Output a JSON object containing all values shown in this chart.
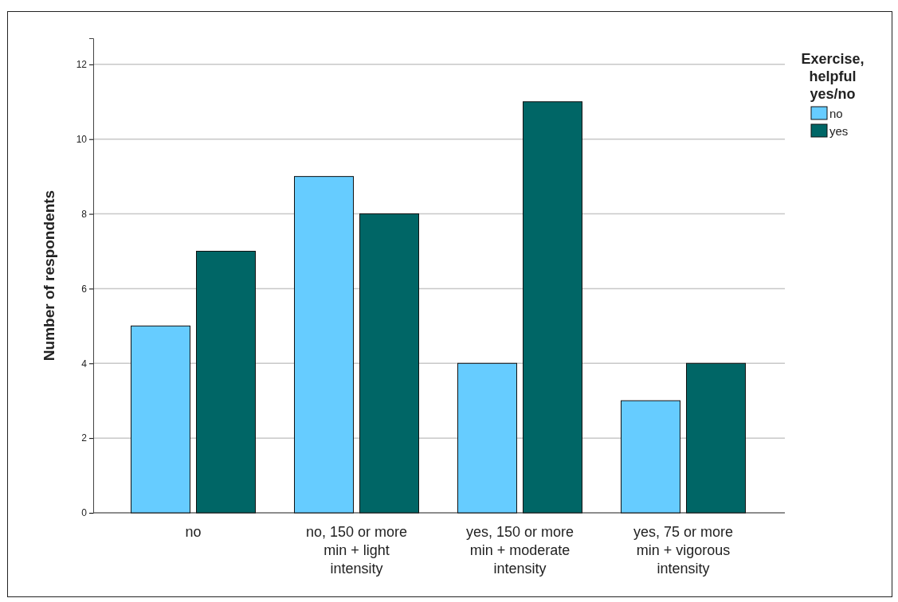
{
  "chart_data": {
    "type": "bar",
    "ylabel": "Number of respondents",
    "legend_title": "Exercise, helpful yes/no",
    "categories": [
      "no",
      "no, 150 or more min + light intensity",
      "yes, 150 or more min + moderate intensity",
      "yes, 75 or more min + vigorous intensity"
    ],
    "series": [
      {
        "name": "no",
        "color": "#66ccff",
        "values": [
          5,
          9,
          4,
          3
        ]
      },
      {
        "name": "yes",
        "color": "#006666",
        "values": [
          7,
          8,
          11,
          4
        ]
      }
    ],
    "ylim": [
      0,
      12.7
    ],
    "yticks": [
      0,
      2,
      4,
      6,
      8,
      10,
      12
    ],
    "grid": "y",
    "legend": "top right"
  }
}
